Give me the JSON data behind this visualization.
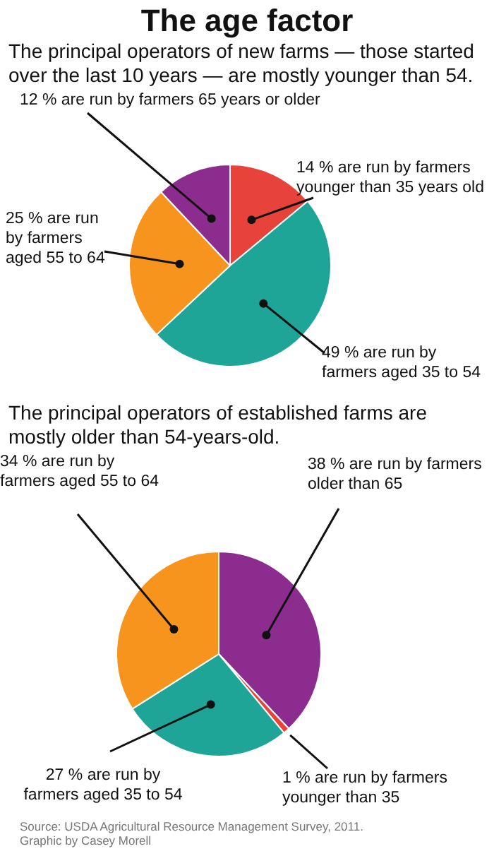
{
  "chart_data": [
    {
      "type": "pie",
      "title": "The age factor",
      "subtitle": "The principal operators of new farms — those started over the last 10 years — are mostly younger than 54.",
      "categories": [
        "14 % are run by farmers younger than 35 years old",
        "49 % are run by farmers aged 35 to 54",
        "25 % are run by farmers aged 55 to 64",
        "12 % are run by farmers 65 years or older"
      ],
      "values": [
        14,
        49,
        25,
        12
      ],
      "colors": [
        "#e8433a",
        "#1fa597",
        "#f7941d",
        "#8b2c8e"
      ]
    },
    {
      "type": "pie",
      "subtitle": "The principal operators of established farms are mostly older than 54-years-old.",
      "categories": [
        "38 % are run by farmers older than 65",
        "1 % are run by farmers younger than 35",
        "27 % are run by farmers aged 35 to 54",
        "34 % are run by farmers aged 55 to 64"
      ],
      "values": [
        38,
        1,
        27,
        34
      ],
      "colors": [
        "#8b2c8e",
        "#e8433a",
        "#1fa597",
        "#f7941d"
      ],
      "annotations": [
        "Source: USDA Agricultural Resource Management Survey, 2011.",
        "Graphic by Casey Morell"
      ]
    }
  ]
}
